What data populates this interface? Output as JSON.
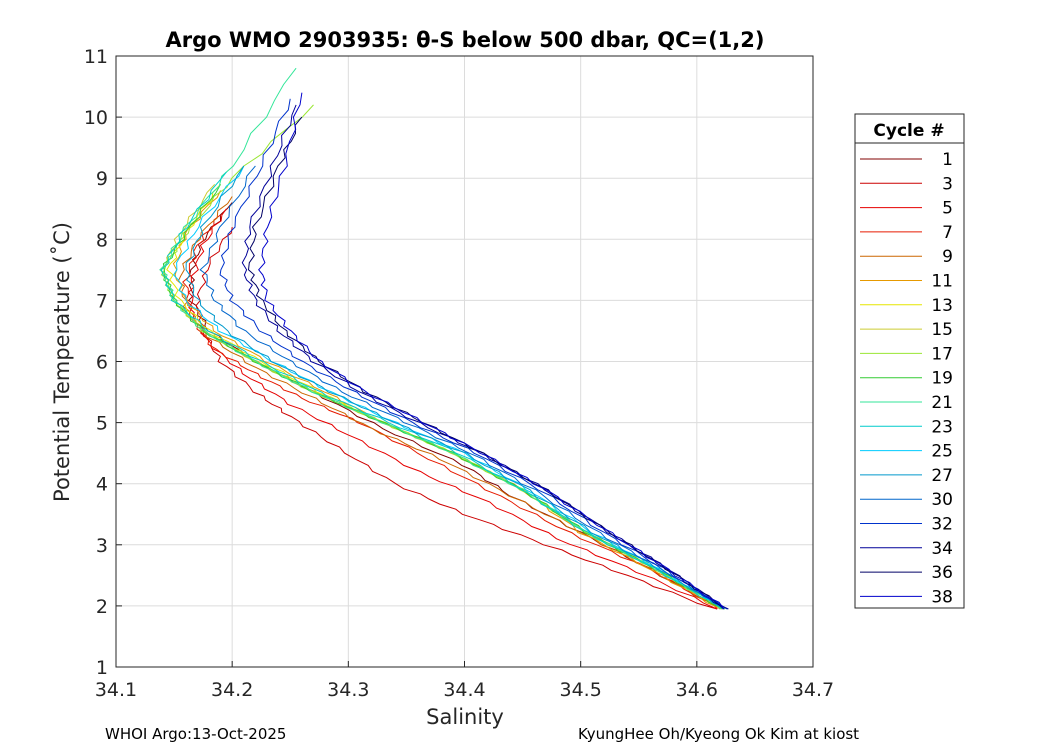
{
  "chart_data": {
    "type": "line",
    "title": "Argo WMO 2903935: θ-S below 500 dbar,  QC=(1,2)",
    "xlabel": "Salinity",
    "ylabel": "Potential Temperature (˚C)",
    "xlim": [
      34.1,
      34.7
    ],
    "ylim": [
      1,
      11
    ],
    "xticks": [
      "34.1",
      "34.2",
      "34.3",
      "34.4",
      "34.5",
      "34.6",
      "34.7"
    ],
    "yticks": [
      "1",
      "2",
      "3",
      "4",
      "5",
      "6",
      "7",
      "8",
      "9",
      "10",
      "11"
    ],
    "grid": true,
    "legend": {
      "title": "Cycle #",
      "placement": "outside-right"
    },
    "series": [
      {
        "name": "1",
        "color": "#800000",
        "salinity": [
          34.62,
          34.56,
          34.5,
          34.44,
          34.4,
          34.33,
          34.27,
          34.22,
          34.18,
          34.165,
          34.165,
          34.175,
          34.2
        ],
        "theta": [
          1.95,
          2.6,
          3.2,
          3.8,
          4.3,
          4.9,
          5.5,
          6.0,
          6.5,
          7.0,
          7.5,
          8.0,
          8.6
        ]
      },
      {
        "name": "3",
        "color": "#cc0000",
        "salinity": [
          34.615,
          34.54,
          34.47,
          34.4,
          34.34,
          34.29,
          34.25,
          34.22,
          34.19,
          34.175,
          34.17,
          34.18,
          34.2
        ],
        "theta": [
          1.95,
          2.5,
          3.0,
          3.5,
          4.0,
          4.6,
          5.1,
          5.5,
          6.0,
          6.5,
          7.0,
          7.6,
          8.2
        ]
      },
      {
        "name": "5",
        "color": "#e60000",
        "salinity": [
          34.618,
          34.55,
          34.48,
          34.42,
          34.36,
          34.3,
          34.25,
          34.21,
          34.18,
          34.165,
          34.165,
          34.175,
          34.195
        ],
        "theta": [
          1.95,
          2.55,
          3.1,
          3.7,
          4.2,
          4.8,
          5.3,
          5.8,
          6.3,
          6.8,
          7.3,
          7.9,
          8.5
        ]
      },
      {
        "name": "7",
        "color": "#e61a00",
        "salinity": [
          34.62,
          34.56,
          34.49,
          34.43,
          34.37,
          34.31,
          34.26,
          34.22,
          34.185,
          34.165,
          34.16,
          34.17,
          34.19
        ],
        "theta": [
          1.95,
          2.6,
          3.2,
          3.8,
          4.4,
          5.0,
          5.4,
          5.8,
          6.2,
          6.7,
          7.3,
          7.9,
          8.4
        ]
      },
      {
        "name": "9",
        "color": "#cc6600",
        "salinity": [
          34.62,
          34.56,
          34.5,
          34.44,
          34.38,
          34.32,
          34.27,
          34.22,
          34.18,
          34.16,
          34.155,
          34.17,
          34.2
        ],
        "theta": [
          1.95,
          2.6,
          3.2,
          3.8,
          4.4,
          4.9,
          5.4,
          5.9,
          6.4,
          6.9,
          7.4,
          8.0,
          8.7
        ]
      },
      {
        "name": "11",
        "color": "#e69900",
        "salinity": [
          34.62,
          34.56,
          34.5,
          34.45,
          34.39,
          34.33,
          34.28,
          34.23,
          34.185,
          34.16,
          34.15,
          34.16,
          34.19
        ],
        "theta": [
          1.95,
          2.6,
          3.2,
          3.9,
          4.5,
          5.0,
          5.5,
          6.0,
          6.5,
          7.0,
          7.5,
          8.1,
          8.8
        ]
      },
      {
        "name": "13",
        "color": "#e6e600",
        "salinity": [
          34.622,
          34.565,
          34.505,
          34.45,
          34.39,
          34.33,
          34.275,
          34.225,
          34.18,
          34.155,
          34.145,
          34.16,
          34.19
        ],
        "theta": [
          1.95,
          2.6,
          3.2,
          3.9,
          4.5,
          5.0,
          5.5,
          6.0,
          6.5,
          7.0,
          7.5,
          8.1,
          8.9
        ]
      },
      {
        "name": "15",
        "color": "#cccc33",
        "salinity": [
          34.622,
          34.565,
          34.505,
          34.45,
          34.39,
          34.33,
          34.27,
          34.22,
          34.175,
          34.15,
          34.14,
          34.155,
          34.185
        ],
        "theta": [
          1.95,
          2.6,
          3.2,
          3.9,
          4.5,
          5.0,
          5.5,
          6.0,
          6.5,
          7.0,
          7.5,
          8.1,
          8.9
        ]
      },
      {
        "name": "17",
        "color": "#99e633",
        "salinity": [
          34.622,
          34.565,
          34.505,
          34.45,
          34.39,
          34.33,
          34.27,
          34.22,
          34.175,
          34.15,
          34.14,
          34.16,
          34.2,
          34.27
        ],
        "theta": [
          1.95,
          2.6,
          3.2,
          3.9,
          4.5,
          5.0,
          5.5,
          6.0,
          6.5,
          7.0,
          7.5,
          8.1,
          9.0,
          10.2
        ]
      },
      {
        "name": "19",
        "color": "#33cc33",
        "salinity": [
          34.622,
          34.565,
          34.505,
          34.45,
          34.39,
          34.33,
          34.27,
          34.22,
          34.175,
          34.15,
          34.14,
          34.16,
          34.19
        ],
        "theta": [
          1.95,
          2.6,
          3.2,
          3.9,
          4.5,
          5.0,
          5.5,
          6.0,
          6.5,
          7.0,
          7.5,
          8.1,
          8.9
        ]
      },
      {
        "name": "21",
        "color": "#33e699",
        "salinity": [
          34.623,
          34.565,
          34.505,
          34.45,
          34.39,
          34.33,
          34.27,
          34.22,
          34.175,
          34.15,
          34.14,
          34.16,
          34.2,
          34.255
        ],
        "theta": [
          1.95,
          2.6,
          3.2,
          3.9,
          4.5,
          5.0,
          5.5,
          6.0,
          6.5,
          7.0,
          7.5,
          8.2,
          9.2,
          10.8
        ]
      },
      {
        "name": "23",
        "color": "#00cccc",
        "salinity": [
          34.623,
          34.565,
          34.505,
          34.45,
          34.395,
          34.335,
          34.275,
          34.225,
          34.18,
          34.15,
          34.14,
          34.16,
          34.195
        ],
        "theta": [
          1.95,
          2.6,
          3.2,
          3.9,
          4.5,
          5.0,
          5.5,
          6.0,
          6.5,
          7.0,
          7.5,
          8.2,
          9.1
        ]
      },
      {
        "name": "25",
        "color": "#00ccff",
        "salinity": [
          34.624,
          34.568,
          34.51,
          34.455,
          34.4,
          34.34,
          34.285,
          34.235,
          34.19,
          34.16,
          34.15,
          34.17,
          34.21
        ],
        "theta": [
          1.95,
          2.6,
          3.2,
          3.9,
          4.5,
          5.0,
          5.5,
          6.0,
          6.5,
          7.0,
          7.5,
          8.2,
          9.2
        ]
      },
      {
        "name": "27",
        "color": "#0099cc",
        "salinity": [
          34.624,
          34.568,
          34.51,
          34.455,
          34.4,
          34.34,
          34.285,
          34.235,
          34.195,
          34.17,
          34.16,
          34.175,
          34.21
        ],
        "theta": [
          1.95,
          2.6,
          3.2,
          3.9,
          4.5,
          5.0,
          5.5,
          6.0,
          6.5,
          7.0,
          7.5,
          8.2,
          9.2
        ]
      },
      {
        "name": "30",
        "color": "#0066cc",
        "salinity": [
          34.625,
          34.57,
          34.515,
          34.46,
          34.405,
          34.35,
          34.295,
          34.25,
          34.21,
          34.185,
          34.175,
          34.19,
          34.22
        ],
        "theta": [
          1.95,
          2.6,
          3.2,
          3.9,
          4.5,
          5.0,
          5.5,
          6.0,
          6.5,
          7.0,
          7.5,
          8.2,
          9.2
        ]
      },
      {
        "name": "32",
        "color": "#0033cc",
        "salinity": [
          34.625,
          34.572,
          34.52,
          34.465,
          34.41,
          34.355,
          34.305,
          34.26,
          34.225,
          34.2,
          34.19,
          34.2,
          34.225,
          34.25
        ],
        "theta": [
          1.95,
          2.6,
          3.2,
          3.9,
          4.5,
          5.0,
          5.5,
          6.0,
          6.5,
          7.0,
          7.5,
          8.2,
          9.2,
          10.3
        ]
      },
      {
        "name": "34",
        "color": "#000099",
        "salinity": [
          34.625,
          34.575,
          34.525,
          34.47,
          34.415,
          34.36,
          34.31,
          34.27,
          34.24,
          34.22,
          34.21,
          34.215,
          34.235,
          34.255
        ],
        "theta": [
          1.95,
          2.6,
          3.2,
          3.9,
          4.5,
          5.0,
          5.5,
          6.0,
          6.5,
          7.0,
          7.5,
          8.2,
          9.2,
          10.2
        ]
      },
      {
        "name": "36",
        "color": "#000066",
        "salinity": [
          34.625,
          34.575,
          34.525,
          34.47,
          34.415,
          34.365,
          34.315,
          34.275,
          34.245,
          34.225,
          34.215,
          34.22,
          34.24,
          34.26
        ],
        "theta": [
          1.95,
          2.6,
          3.2,
          3.9,
          4.5,
          5.0,
          5.5,
          6.0,
          6.5,
          7.0,
          7.5,
          8.2,
          9.2,
          10.0
        ]
      },
      {
        "name": "38",
        "color": "#0000cc",
        "salinity": [
          34.625,
          34.575,
          34.525,
          34.47,
          34.415,
          34.365,
          34.315,
          34.275,
          34.25,
          34.23,
          34.225,
          34.23,
          34.245,
          34.26
        ],
        "theta": [
          1.95,
          2.6,
          3.2,
          3.9,
          4.5,
          5.0,
          5.5,
          6.0,
          6.5,
          7.0,
          7.5,
          8.2,
          9.2,
          10.4
        ]
      }
    ]
  },
  "footer": {
    "left": "WHOI Argo:13-Oct-2025",
    "right": "KyungHee Oh/Kyeong Ok Kim at kiost"
  }
}
